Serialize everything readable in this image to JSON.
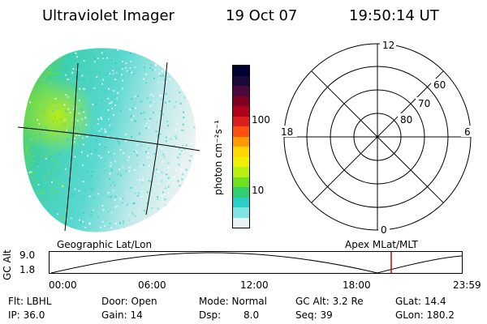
{
  "header": {
    "instrument": "Ultraviolet Imager",
    "date": "19 Oct 07",
    "time": "19:50:14 UT"
  },
  "colorbar": {
    "label": "photon cm⁻²s⁻¹",
    "ticks": [
      "100",
      "10"
    ],
    "colors": [
      "#000033",
      "#1a0a3a",
      "#4a0a40",
      "#800020",
      "#b0001a",
      "#d81e1e",
      "#ff5010",
      "#ff9a00",
      "#ffd800",
      "#f0f000",
      "#b8ef10",
      "#6fe020",
      "#30d070",
      "#28d0c8",
      "#80e4e4",
      "#e8f4f4"
    ]
  },
  "polar_grid": {
    "mlt_labels": [
      "12",
      "18",
      "6",
      "0"
    ],
    "mlat_labels": [
      "60",
      "70",
      "80"
    ]
  },
  "coordinate_labels": {
    "left": "Geographic Lat/Lon",
    "right": "Apex MLat/MLT"
  },
  "altitude_plot": {
    "ylabel": "GC Alt",
    "yticks": [
      "9.0",
      "1.8"
    ],
    "xticks": [
      "00:00",
      "06:00",
      "12:00",
      "18:00",
      "23:59"
    ]
  },
  "info": {
    "flt": "Flt: LBHL",
    "ip": "IP: 36.0",
    "door": "Door: Open",
    "gain": "Gain: 14",
    "mode": "Mode: Normal",
    "dsp_label": "Dsp:",
    "dsp_value": "8.0",
    "gcalt": "GC Alt: 3.2 Re",
    "seq": "Seq: 39",
    "glat": "GLat: 14.4",
    "glon": "GLon: 180.2"
  }
}
